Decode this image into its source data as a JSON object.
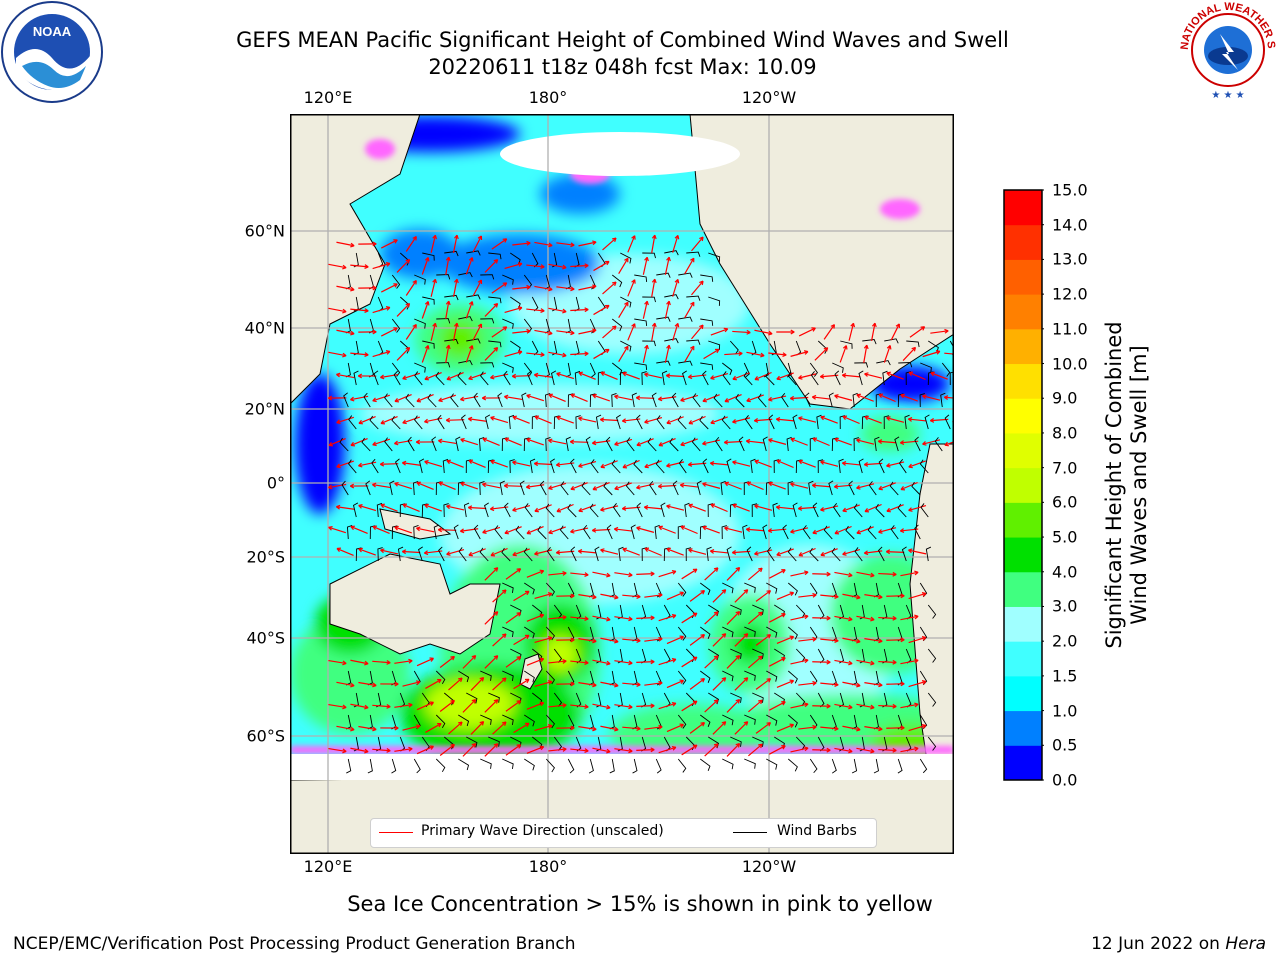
{
  "header": {
    "title_line1": "GEFS MEAN Pacific Significant Height of Combined Wind Waves and Swell",
    "title_line2": "20220611 t18z 048h fcst   Max: 10.09"
  },
  "axes": {
    "lon_top": [
      "120°E",
      "180°",
      "120°W"
    ],
    "lon_bottom": [
      "120°E",
      "180°",
      "120°W"
    ],
    "lat": [
      "60°N",
      "40°N",
      "20°N",
      "0°",
      "20°S",
      "40°S",
      "60°S"
    ]
  },
  "map_legend": {
    "wave_label": "Primary Wave Direction (unscaled)",
    "barb_label": "Wind Barbs",
    "wave_color": "#ff0000",
    "barb_color": "#000000"
  },
  "colorbar": {
    "label_line1": "Significant Height of Combined",
    "label_line2": "Wind Waves and Swell [m]",
    "ticks": [
      "0.0",
      "0.5",
      "1.0",
      "1.5",
      "2.0",
      "3.0",
      "4.0",
      "5.0",
      "6.0",
      "7.0",
      "8.0",
      "9.0",
      "10.0",
      "11.0",
      "12.0",
      "13.0",
      "14.0",
      "15.0"
    ],
    "colors": [
      "#0000ff",
      "#0080ff",
      "#00ffff",
      "#40ffff",
      "#a0ffff",
      "#40ff80",
      "#00e000",
      "#60f000",
      "#c0ff00",
      "#e0ff00",
      "#ffff00",
      "#ffe000",
      "#ffb000",
      "#ff8000",
      "#ff6000",
      "#ff3000",
      "#ff0000"
    ]
  },
  "map_colors": {
    "land": "#efedde",
    "ocean_calm": "#a0ffff",
    "ice": "#ff66ff"
  },
  "footer": {
    "ice_note": "Sea Ice Concentration > 15% is shown in pink to yellow",
    "credit_left": "NCEP/EMC/Verification Post Processing Product Generation Branch",
    "date_text": "12 Jun 2022 on ",
    "machine": "Hera"
  },
  "logos": {
    "left_icon": "noaa-logo-icon",
    "left_text": "NOAA",
    "right_icon": "nws-logo-icon",
    "right_text": "NATIONAL WEATHER SERVICE"
  }
}
